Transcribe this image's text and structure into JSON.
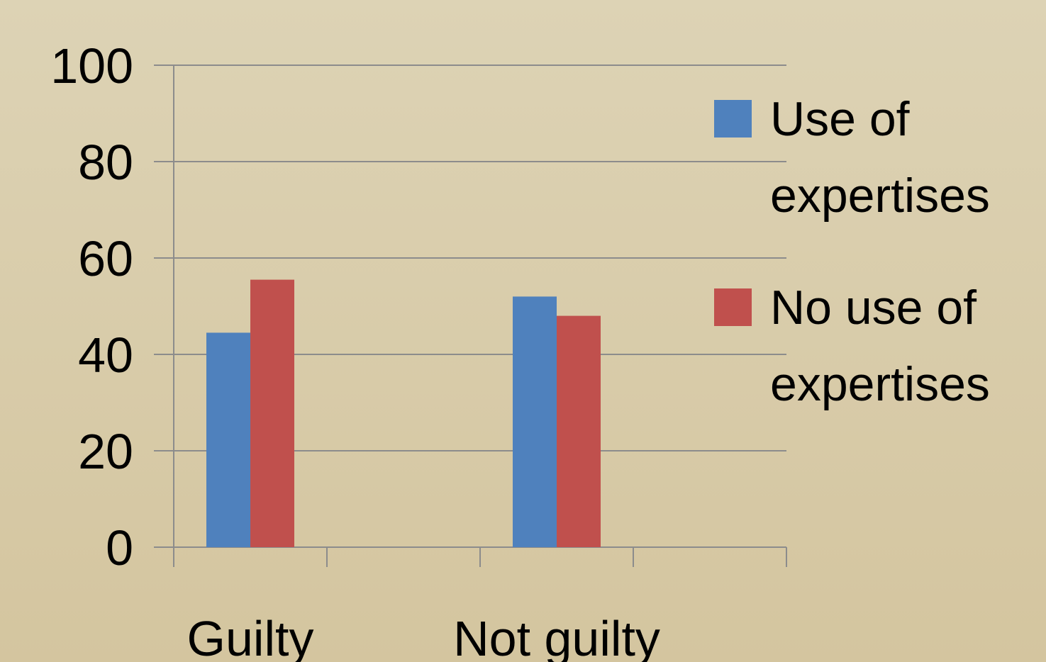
{
  "chart_data": {
    "type": "bar",
    "categories": [
      "Guilty",
      null,
      "Not guilty",
      null
    ],
    "series": [
      {
        "name": "Use of expertises",
        "color": "#4f81bd",
        "values": [
          44.5,
          null,
          52,
          null
        ]
      },
      {
        "name": "No use of expertises",
        "color": "#c0504d",
        "values": [
          55.5,
          null,
          48,
          null
        ]
      }
    ],
    "ylim": [
      0,
      100
    ],
    "yticks": [
      0,
      20,
      40,
      60,
      80,
      100
    ],
    "grid": true,
    "legend": "right"
  }
}
